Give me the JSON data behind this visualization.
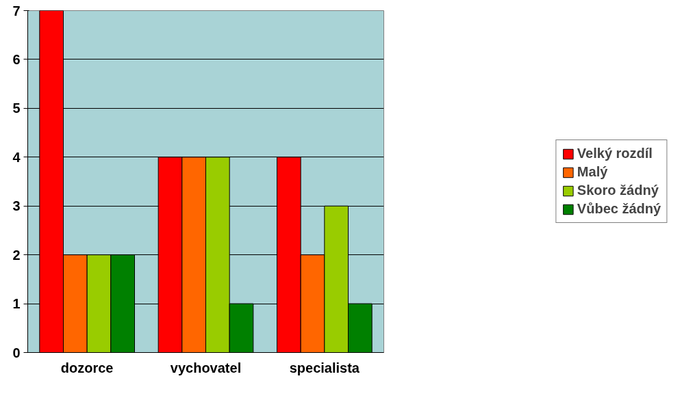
{
  "chart_data": {
    "type": "bar",
    "categories": [
      "dozorce",
      "vychovatel",
      "specialista"
    ],
    "series": [
      {
        "name": "Velký rozdíl",
        "color": "#ff0000",
        "values": [
          7,
          4,
          4
        ]
      },
      {
        "name": "Malý",
        "color": "#ff6600",
        "values": [
          2,
          4,
          2
        ]
      },
      {
        "name": "Skoro žádný",
        "color": "#99cc00",
        "values": [
          2,
          4,
          3
        ]
      },
      {
        "name": "Vůbec žádný",
        "color": "#008000",
        "values": [
          2,
          1,
          1
        ]
      }
    ],
    "ylim": [
      0,
      7
    ],
    "yticks": [
      0,
      1,
      2,
      3,
      4,
      5,
      6,
      7
    ],
    "grid": "y",
    "legend": "right"
  }
}
